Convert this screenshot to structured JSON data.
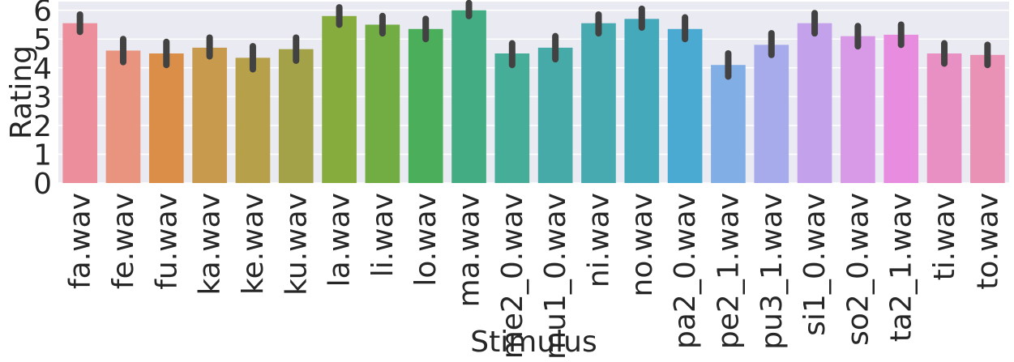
{
  "chart_data": {
    "type": "bar",
    "xlabel": "Stimulus",
    "ylabel": "Rating",
    "ylim": [
      0,
      6.3
    ],
    "yticks": [
      "0",
      "1",
      "2",
      "3",
      "4",
      "5",
      "6"
    ],
    "grid": true,
    "background": "#eaeaf2",
    "error_bar_color": "#424242",
    "categories": [
      "fa.wav",
      "fe.wav",
      "fu.wav",
      "ka.wav",
      "ke.wav",
      "ku.wav",
      "la.wav",
      "li.wav",
      "lo.wav",
      "ma.wav",
      "me2_0.wav",
      "mu1_0.wav",
      "ni.wav",
      "no.wav",
      "pa2_0.wav",
      "pe2_1.wav",
      "pu3_1.wav",
      "si1_0.wav",
      "so2_0.wav",
      "ta2_1.wav",
      "ti.wav",
      "to.wav"
    ],
    "values": [
      5.55,
      4.6,
      4.5,
      4.7,
      4.35,
      4.65,
      5.8,
      5.5,
      5.35,
      6.0,
      4.5,
      4.7,
      5.55,
      5.7,
      5.35,
      4.1,
      4.8,
      5.55,
      5.1,
      5.15,
      4.5,
      4.45
    ],
    "ci_low": [
      5.25,
      4.2,
      4.1,
      4.4,
      3.95,
      4.25,
      5.5,
      5.2,
      5.0,
      5.8,
      4.1,
      4.3,
      5.2,
      5.4,
      5.0,
      3.7,
      4.45,
      5.2,
      4.75,
      4.8,
      4.15,
      4.1
    ],
    "ci_high": [
      5.85,
      5.0,
      4.9,
      5.05,
      4.75,
      5.05,
      6.1,
      5.8,
      5.7,
      6.25,
      4.85,
      5.1,
      5.85,
      6.05,
      5.75,
      4.5,
      5.2,
      5.9,
      5.45,
      5.5,
      4.85,
      4.8
    ],
    "colors": [
      "#ec8e9b",
      "#e8947f",
      "#db8e48",
      "#c89a4d",
      "#b7a04a",
      "#a3a248",
      "#86ac3e",
      "#71ad43",
      "#4aae5a",
      "#43ac82",
      "#45ad98",
      "#46aba8",
      "#46aab0",
      "#45a9bc",
      "#4aaad2",
      "#82aee6",
      "#a7abec",
      "#c3a2eb",
      "#d899e6",
      "#e78cdf",
      "#e88fc4",
      "#e992b5"
    ]
  }
}
